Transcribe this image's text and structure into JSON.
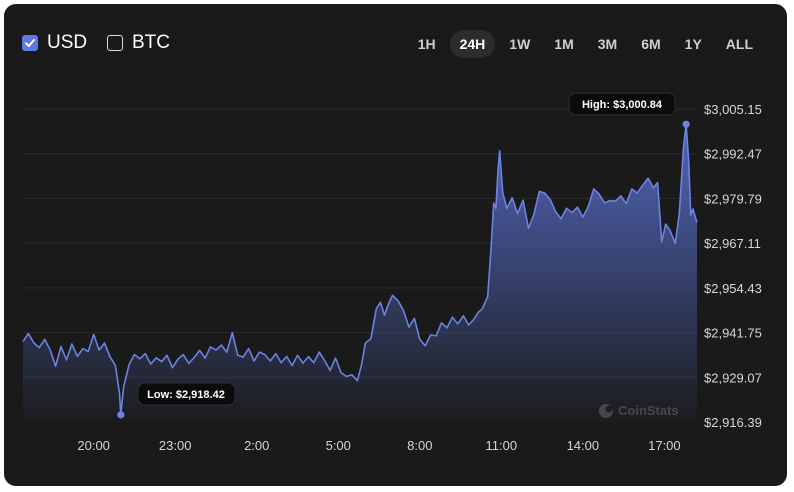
{
  "currency_toggles": [
    {
      "label": "USD",
      "checked": true
    },
    {
      "label": "BTC",
      "checked": false
    }
  ],
  "time_ranges": [
    "1H",
    "24H",
    "1W",
    "1M",
    "3M",
    "6M",
    "1Y",
    "ALL"
  ],
  "active_range": "24H",
  "watermark": "CoinStats",
  "colors": {
    "line": "#6b82e0",
    "accent": "#5e78e6",
    "background": "#1a1a1a",
    "grid": "#2b2b2b"
  },
  "chart_data": {
    "type": "area",
    "x_tick_labels": [
      "20:00",
      "23:00",
      "2:00",
      "5:00",
      "8:00",
      "11:00",
      "14:00",
      "17:00"
    ],
    "x_ticks_hours": [
      20,
      23,
      26,
      29,
      32,
      35,
      38,
      41
    ],
    "y_tick_labels": [
      "$3,005.15",
      "$2,992.47",
      "$2,979.79",
      "$2,967.11",
      "$2,954.43",
      "$2,941.75",
      "$2,929.07",
      "$2,916.39"
    ],
    "y_ticks": [
      3005.15,
      2992.47,
      2979.79,
      2967.11,
      2954.43,
      2941.75,
      2929.07,
      2916.39
    ],
    "ylim": [
      2916.39,
      3005.15
    ],
    "xlim_hours": [
      17.4,
      42.2
    ],
    "grid": true,
    "high": {
      "label": "High: $3,000.84",
      "value": 3000.84,
      "time_hours": 41.8
    },
    "low": {
      "label": "Low: $2,918.42",
      "value": 2918.42,
      "time_hours": 21.0
    },
    "series": [
      {
        "values": [
          [
            17.4,
            2939.2
          ],
          [
            17.6,
            2941.5
          ],
          [
            17.8,
            2938.8
          ],
          [
            18.0,
            2937.5
          ],
          [
            18.2,
            2939.8
          ],
          [
            18.4,
            2936.8
          ],
          [
            18.6,
            2932.2
          ],
          [
            18.8,
            2937.8
          ],
          [
            19.0,
            2934.0
          ],
          [
            19.2,
            2938.5
          ],
          [
            19.4,
            2935.0
          ],
          [
            19.6,
            2937.2
          ],
          [
            19.8,
            2936.4
          ],
          [
            20.0,
            2941.2
          ],
          [
            20.2,
            2936.8
          ],
          [
            20.4,
            2938.8
          ],
          [
            20.6,
            2934.9
          ],
          [
            20.8,
            2932.4
          ],
          [
            20.95,
            2924.5
          ],
          [
            21.0,
            2918.42
          ],
          [
            21.1,
            2926.3
          ],
          [
            21.3,
            2932.6
          ],
          [
            21.5,
            2935.5
          ],
          [
            21.7,
            2934.3
          ],
          [
            21.9,
            2935.8
          ],
          [
            22.1,
            2932.8
          ],
          [
            22.3,
            2934.6
          ],
          [
            22.5,
            2933.5
          ],
          [
            22.7,
            2935.3
          ],
          [
            22.9,
            2931.8
          ],
          [
            23.1,
            2934.2
          ],
          [
            23.3,
            2935.5
          ],
          [
            23.5,
            2933.0
          ],
          [
            23.7,
            2934.7
          ],
          [
            23.9,
            2936.7
          ],
          [
            24.1,
            2934.5
          ],
          [
            24.3,
            2937.7
          ],
          [
            24.5,
            2936.8
          ],
          [
            24.7,
            2938.2
          ],
          [
            24.9,
            2936.2
          ],
          [
            25.1,
            2941.7
          ],
          [
            25.3,
            2935.3
          ],
          [
            25.5,
            2934.8
          ],
          [
            25.7,
            2937.2
          ],
          [
            25.9,
            2933.7
          ],
          [
            26.1,
            2936.2
          ],
          [
            26.3,
            2935.5
          ],
          [
            26.5,
            2933.7
          ],
          [
            26.7,
            2935.8
          ],
          [
            26.9,
            2933.2
          ],
          [
            27.1,
            2935.0
          ],
          [
            27.3,
            2932.4
          ],
          [
            27.5,
            2935.3
          ],
          [
            27.7,
            2933.1
          ],
          [
            27.9,
            2934.9
          ],
          [
            28.1,
            2933.2
          ],
          [
            28.3,
            2936.2
          ],
          [
            28.5,
            2933.8
          ],
          [
            28.7,
            2931.0
          ],
          [
            28.9,
            2934.5
          ],
          [
            29.1,
            2930.4
          ],
          [
            29.3,
            2929.3
          ],
          [
            29.5,
            2929.8
          ],
          [
            29.7,
            2928.1
          ],
          [
            29.85,
            2932.4
          ],
          [
            30.0,
            2938.8
          ],
          [
            30.2,
            2940.0
          ],
          [
            30.4,
            2948.5
          ],
          [
            30.55,
            2950.3
          ],
          [
            30.7,
            2946.7
          ],
          [
            30.85,
            2949.9
          ],
          [
            31.0,
            2952.3
          ],
          [
            31.2,
            2950.8
          ],
          [
            31.4,
            2948.0
          ],
          [
            31.6,
            2943.3
          ],
          [
            31.8,
            2945.8
          ],
          [
            32.0,
            2939.8
          ],
          [
            32.2,
            2938.0
          ],
          [
            32.4,
            2941.1
          ],
          [
            32.6,
            2940.8
          ],
          [
            32.8,
            2944.5
          ],
          [
            33.0,
            2943.1
          ],
          [
            33.2,
            2946.1
          ],
          [
            33.4,
            2944.2
          ],
          [
            33.6,
            2946.5
          ],
          [
            33.8,
            2943.9
          ],
          [
            34.0,
            2945.6
          ],
          [
            34.15,
            2947.5
          ],
          [
            34.3,
            2948.5
          ],
          [
            34.5,
            2952.0
          ],
          [
            34.62,
            2965.5
          ],
          [
            34.72,
            2978.5
          ],
          [
            34.8,
            2977.0
          ],
          [
            34.88,
            2988.3
          ],
          [
            34.94,
            2993.3
          ],
          [
            35.05,
            2981.5
          ],
          [
            35.2,
            2977.0
          ],
          [
            35.4,
            2980.0
          ],
          [
            35.6,
            2975.5
          ],
          [
            35.8,
            2979.3
          ],
          [
            36.0,
            2971.3
          ],
          [
            36.2,
            2975.3
          ],
          [
            36.4,
            2981.8
          ],
          [
            36.6,
            2981.3
          ],
          [
            36.8,
            2979.5
          ],
          [
            37.0,
            2976.0
          ],
          [
            37.2,
            2974.0
          ],
          [
            37.4,
            2977.0
          ],
          [
            37.6,
            2975.8
          ],
          [
            37.8,
            2977.3
          ],
          [
            38.0,
            2974.5
          ],
          [
            38.2,
            2977.5
          ],
          [
            38.4,
            2982.5
          ],
          [
            38.6,
            2981.0
          ],
          [
            38.8,
            2978.5
          ],
          [
            39.0,
            2979.2
          ],
          [
            39.2,
            2979.0
          ],
          [
            39.4,
            2980.5
          ],
          [
            39.6,
            2978.3
          ],
          [
            39.8,
            2982.5
          ],
          [
            40.0,
            2981.3
          ],
          [
            40.2,
            2983.5
          ],
          [
            40.4,
            2985.5
          ],
          [
            40.6,
            2982.8
          ],
          [
            40.75,
            2984.3
          ],
          [
            40.9,
            2967.5
          ],
          [
            41.05,
            2972.5
          ],
          [
            41.2,
            2970.8
          ],
          [
            41.4,
            2967.1
          ],
          [
            41.55,
            2975.5
          ],
          [
            41.7,
            2994.0
          ],
          [
            41.8,
            3000.84
          ],
          [
            41.9,
            2990.0
          ],
          [
            41.97,
            2975.0
          ],
          [
            42.05,
            2976.8
          ],
          [
            42.2,
            2973.0
          ]
        ]
      }
    ]
  }
}
